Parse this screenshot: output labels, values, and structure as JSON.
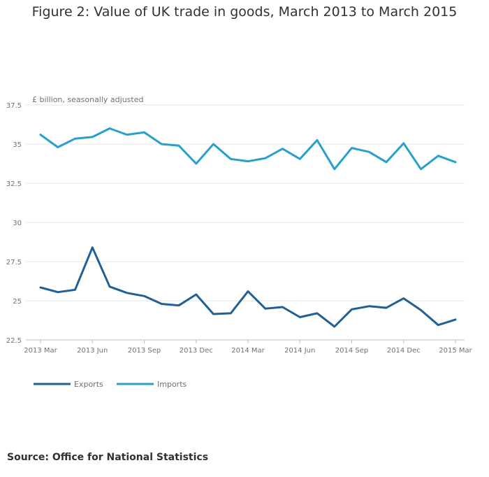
{
  "chart_data": {
    "type": "line",
    "title": "Figure 2: Value of UK trade in goods, March 2013 to March 2015",
    "ylabel": "£ billion, seasonally adjusted",
    "xlabel": "",
    "ylim": [
      22.5,
      37.5
    ],
    "yticks": [
      22.5,
      25,
      27.5,
      30,
      32.5,
      35,
      37.5
    ],
    "ytick_labels": [
      "22.5",
      "25",
      "27.5",
      "30",
      "32.5",
      "35",
      "37.5"
    ],
    "categories": [
      "2013 Mar",
      "2013 Apr",
      "2013 May",
      "2013 Jun",
      "2013 Jul",
      "2013 Aug",
      "2013 Sep",
      "2013 Oct",
      "2013 Nov",
      "2013 Dec",
      "2014 Jan",
      "2014 Feb",
      "2014 Mar",
      "2014 Apr",
      "2014 May",
      "2014 Jun",
      "2014 Jul",
      "2014 Aug",
      "2014 Sep",
      "2014 Oct",
      "2014 Nov",
      "2014 Dec",
      "2015 Jan",
      "2015 Feb",
      "2015 Mar"
    ],
    "xtick_labels": [
      {
        "index": 0,
        "label": "2013 Mar"
      },
      {
        "index": 3,
        "label": "2013 Jun"
      },
      {
        "index": 6,
        "label": "2013 Sep"
      },
      {
        "index": 9,
        "label": "2013 Dec"
      },
      {
        "index": 12,
        "label": "2014 Mar"
      },
      {
        "index": 15,
        "label": "2014 Jun"
      },
      {
        "index": 18,
        "label": "2014 Sep"
      },
      {
        "index": 21,
        "label": "2014 Dec"
      },
      {
        "index": 24,
        "label": "2015 Mar"
      }
    ],
    "series": [
      {
        "name": "Exports",
        "color": "#206095",
        "values": [
          25.85,
          25.55,
          25.7,
          28.4,
          25.9,
          25.5,
          25.3,
          24.8,
          24.7,
          25.4,
          24.15,
          24.2,
          25.6,
          24.5,
          24.6,
          23.95,
          24.2,
          23.35,
          24.45,
          24.65,
          24.55,
          25.15,
          24.4,
          23.45,
          23.8
        ]
      },
      {
        "name": "Imports",
        "color": "#27a0cc",
        "values": [
          35.6,
          34.8,
          35.35,
          35.45,
          36.0,
          35.6,
          35.75,
          35.0,
          34.9,
          33.75,
          35.0,
          34.05,
          33.9,
          34.1,
          34.7,
          34.05,
          35.25,
          33.4,
          34.75,
          34.5,
          33.85,
          35.05,
          33.4,
          34.25,
          33.85
        ]
      }
    ]
  },
  "source": "Source: Office for National Statistics"
}
